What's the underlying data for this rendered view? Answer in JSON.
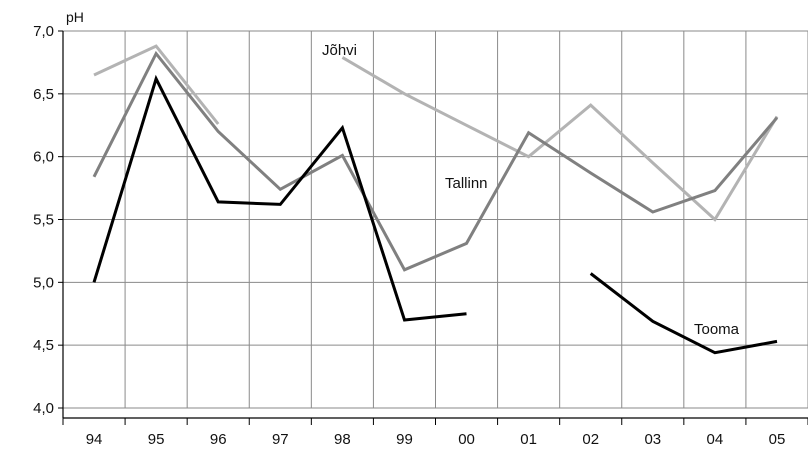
{
  "chart_data": {
    "type": "line",
    "ylabel": "pH",
    "ylim": [
      4.0,
      7.0
    ],
    "y_ticks": [
      "4,0",
      "4,5",
      "5,0",
      "5,5",
      "6,0",
      "6,5",
      "7,0"
    ],
    "categories": [
      "94",
      "95",
      "96",
      "97",
      "98",
      "99",
      "00",
      "01",
      "02",
      "03",
      "04",
      "05"
    ],
    "grid": true,
    "series": [
      {
        "name": "Jõhvi",
        "color": "#b3b3b3",
        "values": [
          6.65,
          6.88,
          6.26,
          null,
          6.79,
          6.5,
          6.25,
          6.0,
          6.41,
          5.95,
          5.5,
          6.32
        ]
      },
      {
        "name": "Tallinn",
        "color": "#808080",
        "values": [
          5.84,
          6.82,
          6.2,
          5.74,
          6.01,
          5.1,
          5.31,
          6.19,
          5.87,
          5.56,
          5.73,
          6.31
        ]
      },
      {
        "name": "Tooma",
        "color": "#000000",
        "values": [
          5.0,
          6.62,
          5.64,
          5.62,
          6.23,
          4.7,
          4.75,
          null,
          5.07,
          4.69,
          4.44,
          4.53
        ]
      }
    ]
  }
}
